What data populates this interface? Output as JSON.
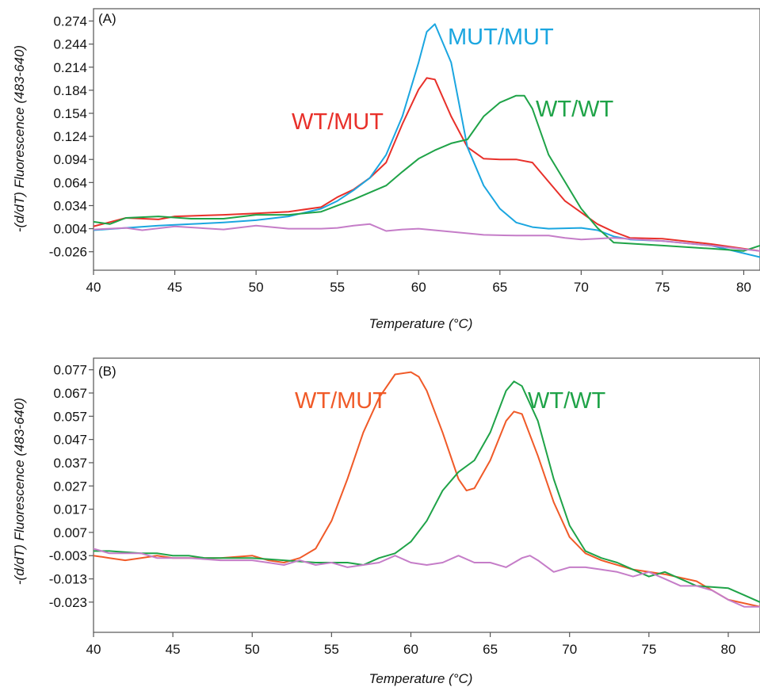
{
  "chart_data": [
    {
      "type": "line",
      "panel_label": "(A)",
      "xlabel": "Temperature (°C)",
      "ylabel": "-(d/dT) Fluorescence (483-640)",
      "xlim": [
        40,
        81
      ],
      "ylim": [
        -0.05,
        0.29
      ],
      "xticks": [
        40,
        45,
        50,
        55,
        60,
        65,
        70,
        75,
        80
      ],
      "yticks": [
        "0.274",
        "0.244",
        "0.214",
        "0.184",
        "0.154",
        "0.124",
        "0.094",
        "0.064",
        "0.034",
        "0.004",
        "-0.026"
      ],
      "grid": false,
      "series": [
        {
          "color": "#e8302a",
          "x": [
            40,
            42,
            44,
            45,
            48,
            50,
            52,
            54,
            55,
            56,
            57,
            58,
            59,
            60,
            60.5,
            61,
            62,
            63,
            64,
            65,
            66,
            67,
            68,
            69,
            70,
            71,
            72,
            73,
            75,
            78,
            81
          ],
          "y": [
            0.007,
            0.018,
            0.016,
            0.02,
            0.022,
            0.024,
            0.026,
            0.032,
            0.045,
            0.055,
            0.07,
            0.09,
            0.14,
            0.185,
            0.2,
            0.198,
            0.15,
            0.11,
            0.095,
            0.094,
            0.094,
            0.09,
            0.065,
            0.04,
            0.025,
            0.01,
            0.0,
            -0.008,
            -0.009,
            -0.016,
            -0.025
          ]
        },
        {
          "color": "#1ba6e0",
          "x": [
            40,
            42,
            44,
            46,
            48,
            50,
            52,
            54,
            55,
            56,
            57,
            58,
            59,
            60,
            60.5,
            61,
            62,
            63,
            64,
            65,
            66,
            67,
            68,
            70,
            71,
            72,
            73,
            75,
            78,
            81
          ],
          "y": [
            0.002,
            0.005,
            0.008,
            0.01,
            0.012,
            0.015,
            0.02,
            0.03,
            0.04,
            0.054,
            0.07,
            0.1,
            0.15,
            0.22,
            0.26,
            0.27,
            0.22,
            0.11,
            0.06,
            0.03,
            0.012,
            0.006,
            0.004,
            0.005,
            0.002,
            -0.006,
            -0.01,
            -0.012,
            -0.018,
            -0.033
          ]
        },
        {
          "color": "#1fa348",
          "x": [
            40,
            41,
            42,
            44,
            46,
            48,
            50,
            52,
            54,
            56,
            58,
            59,
            60,
            61,
            62,
            63,
            64,
            65,
            66,
            66.5,
            67,
            68,
            69,
            70,
            71,
            72,
            75,
            78,
            80,
            81
          ],
          "y": [
            0.013,
            0.01,
            0.018,
            0.02,
            0.017,
            0.017,
            0.022,
            0.022,
            0.026,
            0.042,
            0.06,
            0.078,
            0.095,
            0.106,
            0.115,
            0.12,
            0.15,
            0.168,
            0.177,
            0.177,
            0.16,
            0.1,
            0.065,
            0.03,
            0.005,
            -0.014,
            -0.018,
            -0.022,
            -0.025,
            -0.018
          ]
        },
        {
          "color": "#c57dc8",
          "x": [
            40,
            42,
            43,
            45,
            48,
            50,
            52,
            54,
            55,
            56,
            57,
            58,
            59,
            60,
            62,
            64,
            66,
            68,
            69,
            70,
            72,
            75,
            78,
            81
          ],
          "y": [
            0.003,
            0.005,
            0.002,
            0.007,
            0.003,
            0.008,
            0.004,
            0.004,
            0.005,
            0.008,
            0.01,
            0.001,
            0.003,
            0.004,
            0.0,
            -0.004,
            -0.005,
            -0.005,
            -0.008,
            -0.01,
            -0.008,
            -0.012,
            -0.018,
            -0.025
          ]
        }
      ],
      "annotations": [
        {
          "text": "MUT/MUT",
          "color": "#1ba6e0"
        },
        {
          "text": "WT/MUT",
          "color": "#e8302a"
        },
        {
          "text": "WT/WT",
          "color": "#1fa348"
        }
      ]
    },
    {
      "type": "line",
      "panel_label": "(B)",
      "xlabel": "Temperature (°C)",
      "ylabel": "-(d/dT) Fluorescence (483-640)",
      "xlim": [
        40,
        82
      ],
      "ylim": [
        -0.036,
        0.082
      ],
      "xticks": [
        40,
        45,
        50,
        55,
        60,
        65,
        70,
        75,
        80
      ],
      "yticks": [
        "0.077",
        "0.067",
        "0.057",
        "0.047",
        "0.037",
        "0.027",
        "0.017",
        "0.007",
        "-0.003",
        "-0.013",
        "-0.023"
      ],
      "grid": false,
      "series": [
        {
          "color": "#f05a28",
          "x": [
            40,
            41,
            42,
            43,
            44,
            45,
            46,
            48,
            50,
            51,
            52,
            53,
            54,
            55,
            56,
            57,
            58,
            59,
            60,
            60.5,
            61,
            62,
            63,
            63.5,
            64,
            65,
            66,
            66.5,
            67,
            68,
            69,
            70,
            71,
            72,
            74,
            76,
            78,
            80,
            82
          ],
          "y": [
            -0.003,
            -0.004,
            -0.005,
            -0.004,
            -0.003,
            -0.004,
            -0.004,
            -0.004,
            -0.003,
            -0.005,
            -0.006,
            -0.004,
            0.0,
            0.012,
            0.03,
            0.05,
            0.065,
            0.075,
            0.076,
            0.074,
            0.068,
            0.05,
            0.03,
            0.025,
            0.026,
            0.038,
            0.055,
            0.059,
            0.058,
            0.04,
            0.02,
            0.005,
            -0.002,
            -0.005,
            -0.009,
            -0.011,
            -0.014,
            -0.022,
            -0.025
          ]
        },
        {
          "color": "#1fa348",
          "x": [
            40,
            41,
            43,
            44,
            45,
            46,
            47,
            48,
            50,
            52,
            54,
            56,
            57,
            58,
            59,
            60,
            61,
            62,
            63,
            64,
            65,
            66,
            66.5,
            67,
            68,
            69,
            70,
            71,
            72,
            73,
            74,
            75,
            76,
            78,
            80,
            81,
            82
          ],
          "y": [
            -0.001,
            -0.001,
            -0.002,
            -0.002,
            -0.003,
            -0.003,
            -0.004,
            -0.004,
            -0.004,
            -0.005,
            -0.006,
            -0.006,
            -0.007,
            -0.004,
            -0.002,
            0.003,
            0.012,
            0.025,
            0.033,
            0.038,
            0.05,
            0.068,
            0.072,
            0.07,
            0.055,
            0.03,
            0.01,
            -0.001,
            -0.004,
            -0.006,
            -0.009,
            -0.012,
            -0.01,
            -0.016,
            -0.017,
            -0.02,
            -0.023
          ]
        },
        {
          "color": "#c57dc8",
          "x": [
            40,
            41,
            43,
            44,
            46,
            48,
            50,
            51,
            52,
            53,
            54,
            55,
            56,
            57,
            58,
            59,
            60,
            61,
            62,
            63,
            64,
            65,
            66,
            67,
            67.5,
            68,
            69,
            70,
            71,
            72,
            73,
            74,
            75,
            76,
            77,
            78,
            79,
            80,
            81,
            82
          ],
          "y": [
            0.0,
            -0.002,
            -0.002,
            -0.004,
            -0.004,
            -0.005,
            -0.005,
            -0.006,
            -0.007,
            -0.005,
            -0.007,
            -0.006,
            -0.008,
            -0.007,
            -0.006,
            -0.003,
            -0.006,
            -0.007,
            -0.006,
            -0.003,
            -0.006,
            -0.006,
            -0.008,
            -0.004,
            -0.003,
            -0.005,
            -0.01,
            -0.008,
            -0.008,
            -0.009,
            -0.01,
            -0.012,
            -0.01,
            -0.013,
            -0.016,
            -0.016,
            -0.018,
            -0.022,
            -0.025,
            -0.025
          ]
        }
      ],
      "annotations": [
        {
          "text": "WT/MUT",
          "color": "#f05a28"
        },
        {
          "text": "WT/WT",
          "color": "#1fa348"
        }
      ]
    }
  ]
}
